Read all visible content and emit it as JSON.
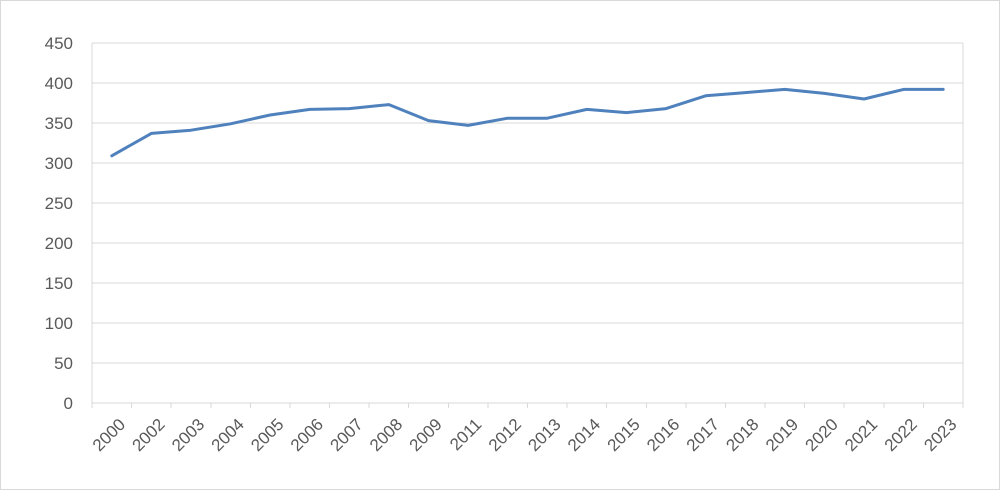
{
  "chart_data": {
    "type": "line",
    "title": "",
    "xlabel": "",
    "ylabel": "",
    "categories": [
      "2000",
      "2002",
      "2003",
      "2004",
      "2005",
      "2006",
      "2007",
      "2008",
      "2009",
      "2011",
      "2012",
      "2013",
      "2014",
      "2015",
      "2016",
      "2017",
      "2018",
      "2019",
      "2020",
      "2021",
      "2022",
      "2023"
    ],
    "series": [
      {
        "values": [
          309,
          337,
          341,
          349,
          360,
          367,
          368,
          373,
          353,
          347,
          356,
          356,
          367,
          363,
          368,
          384,
          388,
          392,
          387,
          380,
          392,
          392
        ],
        "color": "#4f81bd"
      }
    ],
    "ylim": [
      0,
      450
    ],
    "yticks": [
      0,
      50,
      100,
      150,
      200,
      250,
      300,
      350,
      400,
      450
    ],
    "grid": true,
    "legend": "none",
    "colors": {
      "gridline": "#d9d9d9",
      "axis_text": "#595959",
      "border": "#d9d9d9"
    }
  }
}
